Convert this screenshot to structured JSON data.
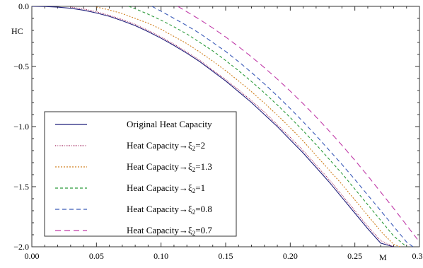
{
  "chart_data": {
    "type": "line",
    "title": "",
    "xlabel": "M",
    "ylabel": "HC",
    "xlim": [
      0.0,
      0.3
    ],
    "ylim": [
      -2.0,
      0.0
    ],
    "x_ticks": [
      "0.00",
      "0.05",
      "0.10",
      "0.15",
      "0.20",
      "0.25",
      "0.30"
    ],
    "y_ticks": [
      "0.0",
      "−0.5",
      "−1.0",
      "−1.5",
      "−2.0"
    ],
    "grid": false,
    "legend_position": "bottom-left",
    "series": [
      {
        "name": "Original Heat Capacity",
        "color": "#1f1f7a",
        "dash": "solid",
        "x": [
          0.0,
          0.01,
          0.02,
          0.03,
          0.04,
          0.05,
          0.06,
          0.07,
          0.08,
          0.09,
          0.1,
          0.11,
          0.12,
          0.13,
          0.14,
          0.15,
          0.16,
          0.17,
          0.18,
          0.19,
          0.2,
          0.21,
          0.22,
          0.23,
          0.24,
          0.25,
          0.26,
          0.27,
          0.28
        ],
        "y": [
          0.0,
          -0.001,
          -0.006,
          -0.016,
          -0.032,
          -0.055,
          -0.083,
          -0.12,
          -0.16,
          -0.21,
          -0.265,
          -0.325,
          -0.39,
          -0.46,
          -0.54,
          -0.62,
          -0.71,
          -0.8,
          -0.9,
          -1.0,
          -1.11,
          -1.22,
          -1.34,
          -1.46,
          -1.59,
          -1.72,
          -1.85,
          -1.97,
          -2.0
        ]
      },
      {
        "name": "Heat Capacity→ξ₂=2",
        "subscript_base": "Heat Capacity→ξ",
        "subscript": "2",
        "suffix": "=2",
        "color": "#a0205a",
        "dash": "1,1.5",
        "x": [
          0.03,
          0.04,
          0.05,
          0.06,
          0.07,
          0.08,
          0.09,
          0.1,
          0.11,
          0.12,
          0.13,
          0.14,
          0.15,
          0.16,
          0.17,
          0.18,
          0.19,
          0.2,
          0.21,
          0.22,
          0.23,
          0.24,
          0.25,
          0.26,
          0.27,
          0.28
        ],
        "y": [
          -0.005,
          -0.022,
          -0.045,
          -0.075,
          -0.11,
          -0.15,
          -0.2,
          -0.255,
          -0.315,
          -0.38,
          -0.45,
          -0.53,
          -0.61,
          -0.695,
          -0.785,
          -0.88,
          -0.985,
          -1.09,
          -1.2,
          -1.32,
          -1.44,
          -1.57,
          -1.7,
          -1.83,
          -1.95,
          -2.0
        ]
      },
      {
        "name": "Heat Capacity→ξ₂=1.3",
        "subscript_base": "Heat Capacity→ξ",
        "subscript": "2",
        "suffix": "=1.3",
        "color": "#d08020",
        "dash": "2,2",
        "x": [
          0.05,
          0.06,
          0.07,
          0.08,
          0.09,
          0.1,
          0.11,
          0.12,
          0.13,
          0.14,
          0.15,
          0.16,
          0.17,
          0.18,
          0.19,
          0.2,
          0.21,
          0.22,
          0.23,
          0.24,
          0.25,
          0.26,
          0.27,
          0.28,
          0.285
        ],
        "y": [
          -0.005,
          -0.03,
          -0.06,
          -0.1,
          -0.14,
          -0.19,
          -0.25,
          -0.31,
          -0.38,
          -0.455,
          -0.535,
          -0.62,
          -0.71,
          -0.805,
          -0.905,
          -1.01,
          -1.12,
          -1.24,
          -1.36,
          -1.48,
          -1.61,
          -1.74,
          -1.87,
          -1.98,
          -2.0
        ]
      },
      {
        "name": "Heat Capacity→ξ₂=1",
        "subscript_base": "Heat Capacity→ξ",
        "subscript": "2",
        "suffix": "=1",
        "color": "#2a9a3a",
        "dash": "4,3",
        "x": [
          0.075,
          0.08,
          0.09,
          0.1,
          0.11,
          0.12,
          0.13,
          0.14,
          0.15,
          0.16,
          0.17,
          0.18,
          0.19,
          0.2,
          0.21,
          0.22,
          0.23,
          0.24,
          0.25,
          0.26,
          0.27,
          0.28,
          0.29
        ],
        "y": [
          0.0,
          -0.02,
          -0.065,
          -0.115,
          -0.17,
          -0.23,
          -0.3,
          -0.37,
          -0.45,
          -0.535,
          -0.625,
          -0.72,
          -0.82,
          -0.925,
          -1.035,
          -1.15,
          -1.27,
          -1.39,
          -1.52,
          -1.65,
          -1.78,
          -1.91,
          -2.0
        ]
      },
      {
        "name": "Heat Capacity→ξ₂=0.8",
        "subscript_base": "Heat Capacity→ξ",
        "subscript": "2",
        "suffix": "=0.8",
        "color": "#3a5ab8",
        "dash": "6,4",
        "x": [
          0.093,
          0.1,
          0.11,
          0.12,
          0.13,
          0.14,
          0.15,
          0.16,
          0.17,
          0.18,
          0.19,
          0.2,
          0.21,
          0.22,
          0.23,
          0.24,
          0.25,
          0.26,
          0.27,
          0.28,
          0.29,
          0.295
        ],
        "y": [
          0.0,
          -0.04,
          -0.1,
          -0.16,
          -0.225,
          -0.3,
          -0.375,
          -0.46,
          -0.55,
          -0.645,
          -0.745,
          -0.85,
          -0.96,
          -1.075,
          -1.195,
          -1.315,
          -1.44,
          -1.57,
          -1.7,
          -1.83,
          -1.96,
          -2.0
        ]
      },
      {
        "name": "Heat Capacity→ξ₂=0.7",
        "subscript_base": "Heat Capacity→ξ",
        "subscript": "2",
        "suffix": "=0.7",
        "color": "#c03aa8",
        "dash": "8,5",
        "x": [
          0.113,
          0.12,
          0.13,
          0.14,
          0.15,
          0.16,
          0.17,
          0.18,
          0.19,
          0.2,
          0.21,
          0.22,
          0.23,
          0.24,
          0.25,
          0.26,
          0.27,
          0.28,
          0.29,
          0.3
        ],
        "y": [
          0.0,
          -0.045,
          -0.11,
          -0.18,
          -0.255,
          -0.335,
          -0.42,
          -0.51,
          -0.605,
          -0.705,
          -0.81,
          -0.92,
          -1.035,
          -1.155,
          -1.28,
          -1.41,
          -1.545,
          -1.68,
          -1.82,
          -1.96
        ]
      }
    ]
  }
}
